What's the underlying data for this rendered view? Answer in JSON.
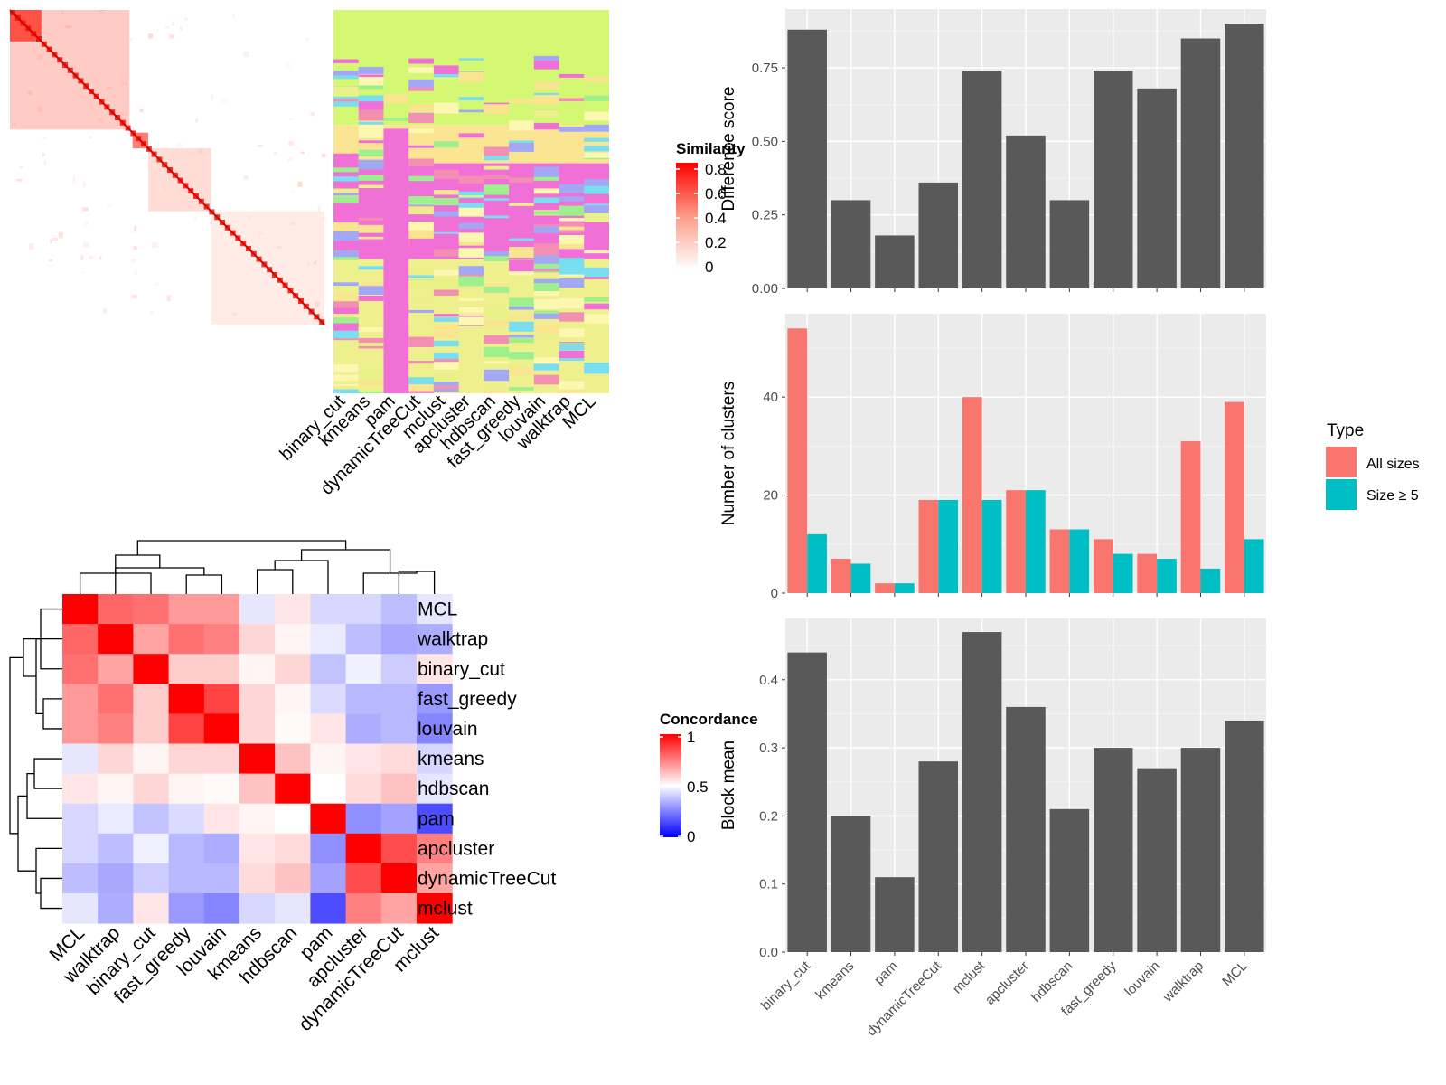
{
  "methods_order": [
    "binary_cut",
    "kmeans",
    "pam",
    "dynamicTreeCut",
    "mclust",
    "apcluster",
    "hdbscan",
    "fast_greedy",
    "louvain",
    "walktrap",
    "MCL"
  ],
  "similarity_heatmap": {
    "legend_title": "Similarity",
    "legend_ticks": [
      "0.8",
      "0.6",
      "0.4",
      "0.2",
      "0"
    ],
    "column_labels": [
      "binary_cut",
      "kmeans",
      "pam",
      "dynamicTreeCut",
      "mclust",
      "apcluster",
      "hdbscan",
      "fast_greedy",
      "louvain",
      "walktrap",
      "MCL"
    ]
  },
  "concordance_heatmap": {
    "legend_title": "Concordance",
    "legend_ticks": [
      "1",
      "0.5",
      "0"
    ],
    "row_labels": [
      "MCL",
      "walktrap",
      "binary_cut",
      "fast_greedy",
      "louvain",
      "kmeans",
      "hdbscan",
      "pam",
      "apcluster",
      "dynamicTreeCut",
      "mclust"
    ],
    "col_labels": [
      "MCL",
      "walktrap",
      "binary_cut",
      "fast_greedy",
      "louvain",
      "kmeans",
      "hdbscan",
      "pam",
      "apcluster",
      "dynamicTreeCut",
      "mclust"
    ],
    "matrix": [
      [
        1.0,
        0.8,
        0.78,
        0.7,
        0.7,
        0.45,
        0.55,
        0.42,
        0.42,
        0.37,
        0.45
      ],
      [
        0.8,
        1.0,
        0.68,
        0.78,
        0.75,
        0.58,
        0.52,
        0.46,
        0.37,
        0.33,
        0.34
      ],
      [
        0.78,
        0.68,
        1.0,
        0.6,
        0.6,
        0.52,
        0.58,
        0.38,
        0.47,
        0.4,
        0.55
      ],
      [
        0.7,
        0.78,
        0.6,
        1.0,
        0.87,
        0.58,
        0.52,
        0.43,
        0.36,
        0.36,
        0.3
      ],
      [
        0.7,
        0.75,
        0.6,
        0.87,
        1.0,
        0.58,
        0.51,
        0.55,
        0.34,
        0.36,
        0.26
      ],
      [
        0.45,
        0.58,
        0.52,
        0.58,
        0.58,
        1.0,
        0.62,
        0.52,
        0.55,
        0.57,
        0.42
      ],
      [
        0.55,
        0.52,
        0.58,
        0.52,
        0.51,
        0.62,
        1.0,
        0.5,
        0.57,
        0.62,
        0.45
      ],
      [
        0.42,
        0.46,
        0.38,
        0.43,
        0.55,
        0.52,
        0.5,
        1.0,
        0.28,
        0.32,
        0.15
      ],
      [
        0.42,
        0.37,
        0.47,
        0.36,
        0.34,
        0.55,
        0.57,
        0.28,
        1.0,
        0.85,
        0.75
      ],
      [
        0.37,
        0.33,
        0.4,
        0.36,
        0.36,
        0.57,
        0.62,
        0.32,
        0.85,
        1.0,
        0.68
      ],
      [
        0.45,
        0.34,
        0.55,
        0.3,
        0.26,
        0.42,
        0.45,
        0.15,
        0.75,
        0.68,
        1.0
      ]
    ]
  },
  "chart_data": [
    {
      "type": "bar",
      "categories": [
        "binary_cut",
        "kmeans",
        "pam",
        "dynamicTreeCut",
        "mclust",
        "apcluster",
        "hdbscan",
        "fast_greedy",
        "louvain",
        "walktrap",
        "MCL"
      ],
      "values": [
        0.88,
        0.3,
        0.18,
        0.36,
        0.74,
        0.52,
        0.3,
        0.74,
        0.68,
        0.85,
        0.9
      ],
      "ylabel": "Difference score",
      "ylim": [
        0,
        0.95
      ],
      "yticks": [
        "0.00",
        "0.25",
        "0.50",
        "0.75"
      ],
      "grid": true
    },
    {
      "type": "bar",
      "categories": [
        "binary_cut",
        "kmeans",
        "pam",
        "dynamicTreeCut",
        "mclust",
        "apcluster",
        "hdbscan",
        "fast_greedy",
        "louvain",
        "walktrap",
        "MCL"
      ],
      "series": [
        {
          "name": "All sizes",
          "color": "#F8766D",
          "values": [
            54,
            7,
            2,
            19,
            40,
            21,
            13,
            11,
            8,
            31,
            39
          ]
        },
        {
          "name": "Size ≥ 5",
          "color": "#00BFC4",
          "values": [
            12,
            6,
            2,
            19,
            19,
            21,
            13,
            8,
            7,
            5,
            11
          ]
        }
      ],
      "ylabel": "Number of clusters",
      "ylim": [
        0,
        57
      ],
      "yticks": [
        "0",
        "20",
        "40"
      ],
      "legend_title": "Type",
      "legend_position": "right",
      "grid": true
    },
    {
      "type": "bar",
      "categories": [
        "binary_cut",
        "kmeans",
        "pam",
        "dynamicTreeCut",
        "mclust",
        "apcluster",
        "hdbscan",
        "fast_greedy",
        "louvain",
        "walktrap",
        "MCL"
      ],
      "values": [
        0.44,
        0.2,
        0.11,
        0.28,
        0.47,
        0.36,
        0.21,
        0.3,
        0.27,
        0.3,
        0.34
      ],
      "ylabel": "Block mean",
      "ylim": [
        0,
        0.49
      ],
      "yticks": [
        "0.0",
        "0.1",
        "0.2",
        "0.3",
        "0.4"
      ],
      "grid": true
    }
  ]
}
